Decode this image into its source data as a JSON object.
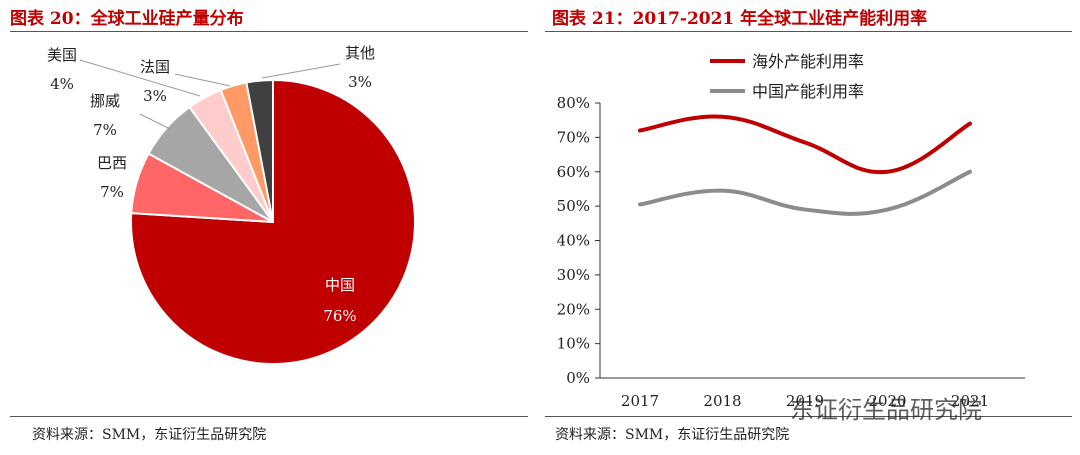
{
  "left_panel": {
    "title": "图表 20：全球工业硅产量分布",
    "source": "资料来源：SMM，东证衍生品研究院"
  },
  "right_panel": {
    "title": "图表 21：2017-2021 年全球工业硅产能利用率",
    "source": "资料来源：SMM，东证衍生品研究院"
  },
  "watermark": "东证衍生品研究院",
  "chart_data": [
    {
      "type": "pie",
      "title": "图表 20：全球工业硅产量分布",
      "slices": [
        {
          "name": "中国",
          "label": "76%",
          "value": 76,
          "color": "#c00000"
        },
        {
          "name": "巴西",
          "label": "7%",
          "value": 7,
          "color": "#ff6666"
        },
        {
          "name": "挪威",
          "label": "7%",
          "value": 7,
          "color": "#a6a6a6"
        },
        {
          "name": "美国",
          "label": "4%",
          "value": 4,
          "color": "#ffcccc"
        },
        {
          "name": "法国",
          "label": "3%",
          "value": 3,
          "color": "#ff9966"
        },
        {
          "name": "其他",
          "label": "3%",
          "value": 3,
          "color": "#404040"
        }
      ]
    },
    {
      "type": "line",
      "title": "图表 21：2017-2021 年全球工业硅产能利用率",
      "categories": [
        "2017",
        "2018",
        "2019",
        "2020",
        "2021"
      ],
      "series": [
        {
          "name": "海外产能利用率",
          "values": [
            72,
            76,
            68.5,
            60,
            74
          ],
          "color": "#c00000"
        },
        {
          "name": "中国产能利用率",
          "values": [
            50.5,
            54.5,
            49,
            49,
            60
          ],
          "color": "#8c8c8c"
        }
      ],
      "ylim": [
        0,
        80
      ],
      "yticks": [
        "0%",
        "10%",
        "20%",
        "30%",
        "40%",
        "50%",
        "60%",
        "70%",
        "80%"
      ],
      "grid": false,
      "legend": "top"
    }
  ]
}
